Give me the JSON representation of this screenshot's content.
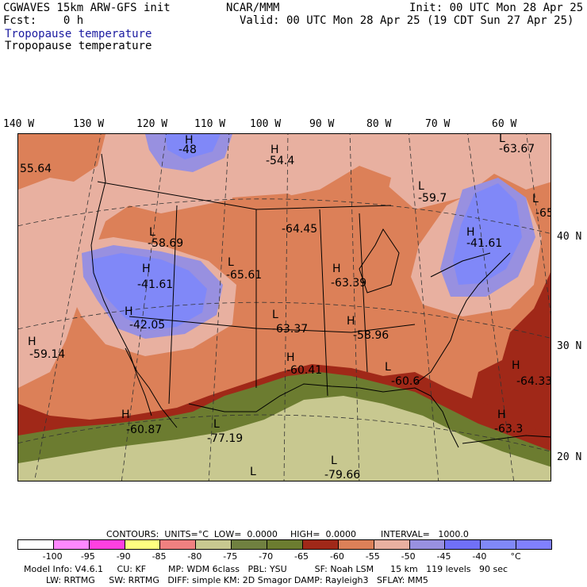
{
  "header": {
    "model": "CGWAVES 15km ARW-GFS init",
    "fcst": "Fcst:    0 h",
    "org": "NCAR/MMM",
    "init": "Init: 00 UTC Mon 28 Apr 25",
    "valid": "Valid: 00 UTC Mon 28 Apr 25 (19 CDT Sun 27 Apr 25)",
    "field_blue": "Tropopause temperature",
    "field_black": "Tropopause temperature"
  },
  "lon_labels": [
    "140 W",
    "130 W",
    "120 W",
    "110 W",
    "100 W",
    "90 W",
    "80 W",
    "70 W",
    "60 W"
  ],
  "lat_labels": [
    "40 N",
    "30 N",
    "20 N"
  ],
  "map_labels": [
    {
      "type": "H",
      "value": "-48"
    },
    {
      "type": "H",
      "value": "-54.4"
    },
    {
      "type": "L",
      "value": "-63.67"
    },
    {
      "type": "L",
      "value": "-59.7"
    },
    {
      "type": "L",
      "value": "-65"
    },
    {
      "type": "",
      "value": "55.64"
    },
    {
      "type": "L",
      "value": "-58.69"
    },
    {
      "type": "",
      "value": "-64.45"
    },
    {
      "type": "H",
      "value": "-41.61"
    },
    {
      "type": "L",
      "value": "-65.61"
    },
    {
      "type": "H",
      "value": "-63.39"
    },
    {
      "type": "H",
      "value": "-41.61"
    },
    {
      "type": "H",
      "value": "-42.05"
    },
    {
      "type": "L",
      "value": "-63.37"
    },
    {
      "type": "H",
      "value": "-58.96"
    },
    {
      "type": "H",
      "value": "-59.14"
    },
    {
      "type": "H",
      "value": "-60.41"
    },
    {
      "type": "L",
      "value": "-60.6"
    },
    {
      "type": "H",
      "value": "-64.33"
    },
    {
      "type": "H",
      "value": "-60.87"
    },
    {
      "type": "L",
      "value": "-77.19"
    },
    {
      "type": "H",
      "value": "-63.3"
    },
    {
      "type": "L",
      "value": "-79.66"
    },
    {
      "type": "L",
      "value": ""
    }
  ],
  "contours": {
    "units": "CONTOURS:  UNITS=°C  LOW=  0.0000",
    "high": "HIGH=  0.0000",
    "interval": "INTERVAL=   1000.0"
  },
  "colorbar": {
    "colors": [
      "#ffffff",
      "#ff88ff",
      "#ff40e0",
      "#ffff80",
      "#f08080",
      "#c8c890",
      "#708040",
      "#6c7c30",
      "#a02818",
      "#dc8058",
      "#e8b0a0",
      "#9890e0",
      "#7070f8",
      "#8088f8",
      "#8080ff"
    ],
    "ticks": [
      "-100",
      "-95",
      "-90",
      "-85",
      "-80",
      "-75",
      "-70",
      "-65",
      "-60",
      "-55",
      "-50",
      "-45",
      "-40",
      "°C"
    ]
  },
  "footer": {
    "line1": "Model Info: V4.6.1     CU: KF        MP: WDM 6class   PBL: YSU          SF: Noah LSM      15 km   119 levels   90 sec",
    "line2": "        LW: RRTMG     SW: RRTMG   DIFF: simple KM: 2D Smagor DAMP: Rayleigh3   SFLAY: MM5"
  }
}
